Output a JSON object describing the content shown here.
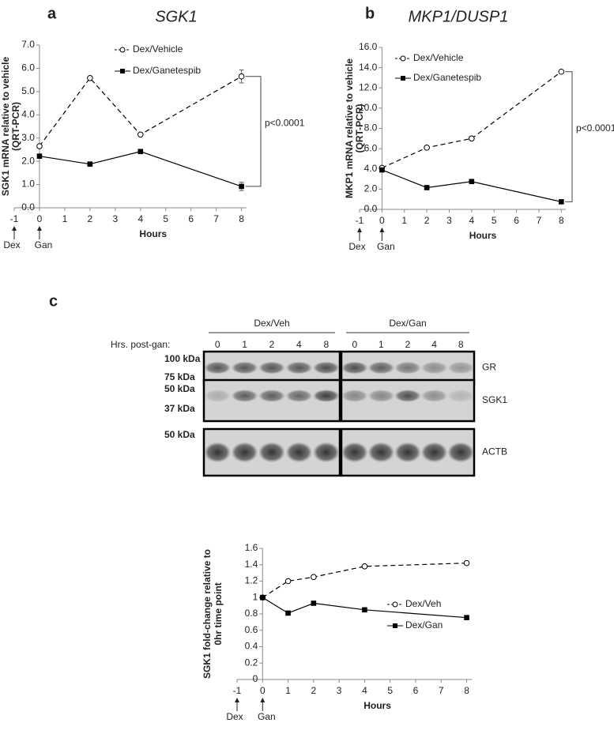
{
  "chart_data": [
    {
      "type": "line",
      "panel_label": "a",
      "title": "SGK1",
      "y_label": [
        "SGK1 mRNA relative to vehicle",
        "(QRT-PCR)"
      ],
      "x_label": "Hours",
      "xlim": [
        -1,
        8.2
      ],
      "xticks": [
        -1,
        0,
        1,
        2,
        3,
        4,
        5,
        6,
        7,
        8
      ],
      "ylim": [
        0,
        7
      ],
      "yticks": [
        {
          "value": 0,
          "label": "0.0"
        },
        {
          "value": 1,
          "label": "1.0"
        },
        {
          "value": 2,
          "label": "2.0"
        },
        {
          "value": 3,
          "label": "3.0"
        },
        {
          "value": 4,
          "label": "4.0"
        },
        {
          "value": 5,
          "label": "5.0"
        },
        {
          "value": 6,
          "label": "6.0"
        },
        {
          "value": 7,
          "label": "7.0"
        }
      ],
      "x": [
        0,
        2,
        4,
        8
      ],
      "series": [
        {
          "name": "Dex/Vehicle",
          "color": "#000000",
          "dash": true,
          "marker": "circle",
          "values": [
            2.65,
            5.58,
            3.15,
            5.65
          ],
          "errors": [
            null,
            null,
            null,
            0.28
          ]
        },
        {
          "name": "Dex/Ganetespib",
          "color": "#000000",
          "dash": false,
          "marker": "square",
          "values": [
            2.22,
            1.88,
            2.42,
            0.92
          ],
          "errors": [
            null,
            null,
            null,
            0.18
          ]
        }
      ],
      "annotation": "p<0.0001",
      "arrow_labels": [
        {
          "x": -1,
          "label": "Dex"
        },
        {
          "x": 0,
          "label": "Gan"
        }
      ]
    },
    {
      "type": "line",
      "panel_label": "b",
      "title": "MKP1/DUSP1",
      "y_label": [
        "MKP1 mRNA relative to vehicle",
        "(QRT-PCR)"
      ],
      "x_label": "Hours",
      "xlim": [
        -1,
        8.2
      ],
      "xticks": [
        -1,
        0,
        1,
        2,
        3,
        4,
        5,
        6,
        7,
        8
      ],
      "ylim": [
        0,
        16
      ],
      "yticks": [
        {
          "value": 0,
          "label": "0.0"
        },
        {
          "value": 2,
          "label": "2.0"
        },
        {
          "value": 4,
          "label": "4.0"
        },
        {
          "value": 6,
          "label": "6.0"
        },
        {
          "value": 8,
          "label": "8.0"
        },
        {
          "value": 10,
          "label": "10.0"
        },
        {
          "value": 12,
          "label": "12.0"
        },
        {
          "value": 14,
          "label": "14.0"
        },
        {
          "value": 16,
          "label": "16.0"
        }
      ],
      "x": [
        0,
        2,
        4,
        8
      ],
      "series": [
        {
          "name": "Dex/Vehicle",
          "color": "#000000",
          "dash": true,
          "marker": "circle",
          "values": [
            4.1,
            6.1,
            7.0,
            13.6
          ]
        },
        {
          "name": "Dex/Ganetespib",
          "color": "#000000",
          "dash": false,
          "marker": "square",
          "values": [
            3.9,
            2.15,
            2.75,
            0.75
          ]
        }
      ],
      "annotation": "p<0.0001",
      "arrow_labels": [
        {
          "x": -1,
          "label": "Dex"
        },
        {
          "x": 0,
          "label": "Gan"
        }
      ]
    },
    {
      "type": "line",
      "y_label": [
        "SGK1 fold-change relative to",
        "0hr time point"
      ],
      "x_label": "Hours",
      "xlim": [
        -1,
        8.2
      ],
      "xticks": [
        -1,
        0,
        1,
        2,
        3,
        4,
        5,
        6,
        7,
        8
      ],
      "ylim": [
        0,
        1.6
      ],
      "yticks": [
        0,
        0.2,
        0.4,
        0.6,
        0.8,
        1,
        1.2,
        1.4,
        1.6
      ],
      "x": [
        0,
        1,
        2,
        4,
        8
      ],
      "series": [
        {
          "name": "Dex/Veh",
          "color": "#000000",
          "dash": true,
          "marker": "circle",
          "values": [
            1,
            1.2,
            1.25,
            1.38,
            1.42
          ]
        },
        {
          "name": "Dex/Gan",
          "color": "#000000",
          "dash": false,
          "marker": "square",
          "values": [
            1,
            0.81,
            0.93,
            0.85,
            0.755
          ]
        }
      ],
      "arrow_labels": [
        {
          "x": -1,
          "label": "Dex"
        },
        {
          "x": 0,
          "label": "Gan"
        }
      ]
    }
  ],
  "blot": {
    "panel_label": "c",
    "groups": [
      "Dex/Veh",
      "Dex/Gan"
    ],
    "row_header": "Hrs. post-gan:",
    "lanes": [
      [
        "0",
        "1",
        "2",
        "4",
        "8"
      ],
      [
        "0",
        "1",
        "2",
        "4",
        "8"
      ]
    ],
    "rows": [
      {
        "name": "GR",
        "markers": [
          "100 kDa",
          "75 kDa"
        ]
      },
      {
        "name": "SGK1",
        "markers": [
          "50 kDa",
          "37 kDa"
        ]
      },
      {
        "name": "ACTB",
        "markers": [
          "50 kDa"
        ]
      }
    ]
  }
}
